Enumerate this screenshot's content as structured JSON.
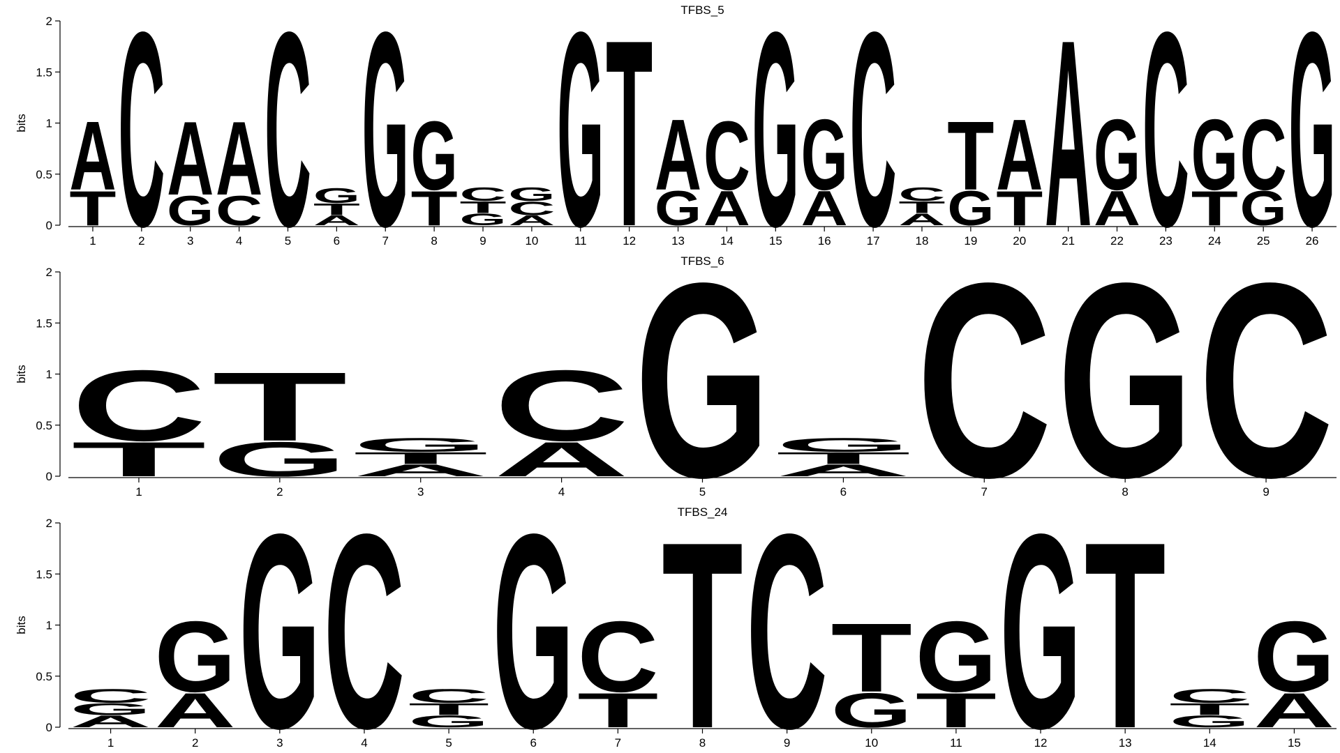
{
  "chart_data": [
    {
      "type": "logo",
      "title": "TFBS_5",
      "ylabel": "bits",
      "ylim": [
        0,
        2
      ],
      "yticks": [
        0,
        0.5,
        1,
        1.5,
        2
      ],
      "categories": [
        1,
        2,
        3,
        4,
        5,
        6,
        7,
        8,
        9,
        10,
        11,
        12,
        13,
        14,
        15,
        16,
        17,
        18,
        19,
        20,
        21,
        22,
        23,
        24,
        25,
        26
      ],
      "series": [
        {
          "name": "A",
          "color": "#0b8a0b",
          "values": [
            0.7,
            0,
            0.75,
            0.75,
            0,
            0.1,
            0,
            0,
            0,
            0.1,
            0,
            0,
            0.72,
            0.35,
            0,
            0.35,
            0,
            0.12,
            0,
            0.72,
            1.9,
            0.35,
            0,
            0,
            0,
            0
          ]
        },
        {
          "name": "C",
          "color": "#2a00c4",
          "values": [
            0,
            1.98,
            0,
            0.3,
            1.98,
            0,
            0,
            0,
            0.14,
            0.14,
            0,
            0,
            0,
            0.7,
            0,
            0,
            1.98,
            0.14,
            0,
            0,
            0,
            0,
            1.98,
            0,
            0.72,
            0
          ]
        },
        {
          "name": "G",
          "color": "#fdb02f",
          "values": [
            0,
            0,
            0.3,
            0,
            0,
            0.15,
            1.98,
            0.7,
            0.12,
            0.14,
            1.98,
            0,
            0.35,
            0,
            1.98,
            0.72,
            0,
            0,
            0.35,
            0,
            0,
            0.72,
            0,
            0.72,
            0.35,
            1.98
          ]
        },
        {
          "name": "T",
          "color": "#d40000",
          "values": [
            0.35,
            0,
            0,
            0,
            0,
            0.12,
            0,
            0.35,
            0.12,
            0,
            0,
            1.9,
            0,
            0,
            0,
            0,
            0,
            0.12,
            0.7,
            0.35,
            0,
            0,
            0,
            0.35,
            0,
            0
          ]
        }
      ]
    },
    {
      "type": "logo",
      "title": "TFBS_6",
      "ylabel": "bits",
      "ylim": [
        0,
        2
      ],
      "yticks": [
        0,
        0.5,
        1,
        1.5,
        2
      ],
      "categories": [
        1,
        2,
        3,
        4,
        5,
        6,
        7,
        8,
        9
      ],
      "series": [
        {
          "name": "A",
          "color": "#0b8a0b",
          "values": [
            0,
            0,
            0.12,
            0.35,
            0,
            0.12,
            0,
            0,
            0
          ]
        },
        {
          "name": "C",
          "color": "#2a00c4",
          "values": [
            0.72,
            0,
            0,
            0.72,
            0,
            0,
            1.98,
            0,
            1.98
          ]
        },
        {
          "name": "G",
          "color": "#fdb02f",
          "values": [
            0,
            0.35,
            0.14,
            0,
            1.98,
            0.14,
            0,
            1.98,
            0
          ]
        },
        {
          "name": "T",
          "color": "#d40000",
          "values": [
            0.35,
            0.7,
            0.12,
            0,
            0,
            0.12,
            0,
            0,
            0
          ]
        }
      ]
    },
    {
      "type": "logo",
      "title": "TFBS_24",
      "ylabel": "bits",
      "ylim": [
        0,
        2
      ],
      "yticks": [
        0,
        0.5,
        1,
        1.5,
        2
      ],
      "categories": [
        1,
        2,
        3,
        4,
        5,
        6,
        7,
        8,
        9,
        10,
        11,
        12,
        13,
        14,
        15
      ],
      "series": [
        {
          "name": "A",
          "color": "#0b8a0b",
          "values": [
            0.12,
            0.35,
            0,
            0,
            0,
            0,
            0,
            0,
            0,
            0,
            0,
            0,
            0,
            0,
            0.35
          ]
        },
        {
          "name": "C",
          "color": "#2a00c4",
          "values": [
            0.14,
            0,
            0,
            1.98,
            0.14,
            0,
            0.72,
            0,
            1.98,
            0,
            0,
            0,
            0,
            0.14,
            0
          ]
        },
        {
          "name": "G",
          "color": "#fdb02f",
          "values": [
            0.12,
            0.72,
            1.98,
            0,
            0.12,
            1.98,
            0,
            0,
            0,
            0.35,
            0.72,
            1.98,
            0,
            0.12,
            0.72
          ]
        },
        {
          "name": "T",
          "color": "#d40000",
          "values": [
            0,
            0,
            0,
            0,
            0.12,
            0,
            0.35,
            1.9,
            0,
            0.7,
            0.35,
            0,
            1.9,
            0.12,
            0
          ]
        }
      ]
    }
  ]
}
